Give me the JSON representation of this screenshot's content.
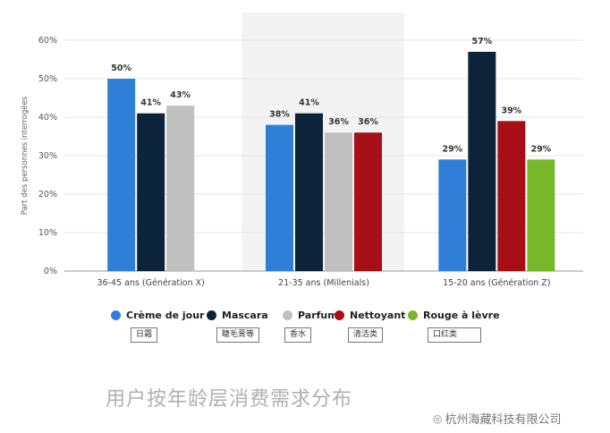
{
  "chart_data": {
    "type": "bar",
    "categories": [
      "36-45 ans (Génération X)",
      "21-35 ans (Millenials)",
      "15-20 ans (Génération Z)"
    ],
    "series": [
      {
        "name": "Crème de jour",
        "color": "#2f7ed8",
        "values": [
          50,
          38,
          29
        ]
      },
      {
        "name": "Mascara",
        "color": "#0d233a",
        "values": [
          41,
          41,
          57
        ]
      },
      {
        "name": "Parfum",
        "color": "#c0c0c0",
        "values": [
          43,
          36,
          null
        ]
      },
      {
        "name": "Nettoyant",
        "color": "#a50f15",
        "values": [
          null,
          36,
          39
        ]
      },
      {
        "name": "Rouge à lèvre",
        "color": "#77b82a",
        "values": [
          null,
          null,
          29
        ]
      }
    ],
    "ylabel": "Part des personnes interrogées",
    "ylim": [
      0,
      60
    ],
    "yticks": [
      "0%",
      "10%",
      "20%",
      "30%",
      "40%",
      "50%",
      "60%"
    ],
    "value_labels": [
      [
        "50%",
        "41%",
        "43%",
        null,
        null
      ],
      [
        "38%",
        "41%",
        "36%",
        "36%",
        null
      ],
      [
        "29%",
        "57%",
        null,
        "39%",
        "29%"
      ]
    ],
    "grid": true,
    "legend_position": "bottom",
    "highlight_category": "21-35 ans (Millenials)"
  },
  "legend_notes": [
    "日霜",
    "睫毛膏等",
    "香水",
    "清洁类",
    "口红类"
  ],
  "caption": "用户按年龄层消费需求分布",
  "watermark": "杭州海藏科技有限公司"
}
